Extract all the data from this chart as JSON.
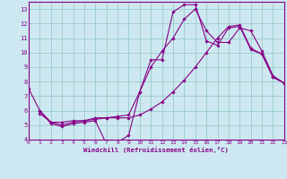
{
  "xlabel": "Windchill (Refroidissement éolien,°C)",
  "bg_color": "#cde8f0",
  "line_color": "#880088",
  "grid_color": "#99cccc",
  "xlim": [
    0,
    23
  ],
  "ylim": [
    4,
    13.5
  ],
  "xticks": [
    0,
    1,
    2,
    3,
    4,
    5,
    6,
    7,
    8,
    9,
    10,
    11,
    12,
    13,
    14,
    15,
    16,
    17,
    18,
    19,
    20,
    21,
    22,
    23
  ],
  "yticks": [
    4,
    5,
    6,
    7,
    8,
    9,
    10,
    11,
    12,
    13
  ],
  "lines": [
    {
      "x": [
        0,
        1,
        2,
        3,
        4,
        5,
        6,
        7,
        8,
        9,
        10,
        11,
        12,
        13,
        14,
        15,
        16,
        17,
        18,
        19,
        20,
        21,
        22,
        23
      ],
      "y": [
        7.5,
        6.0,
        5.1,
        4.9,
        5.1,
        5.2,
        5.3,
        3.7,
        3.8,
        4.3,
        7.3,
        9.5,
        9.5,
        12.8,
        13.3,
        13.3,
        10.8,
        10.5,
        11.7,
        11.8,
        10.2,
        9.9,
        8.3,
        7.9
      ]
    },
    {
      "x": [
        1,
        2,
        3,
        4,
        5,
        6,
        7,
        8,
        9,
        10,
        11,
        12,
        13,
        14,
        15,
        16,
        17,
        18,
        19,
        20,
        21,
        22,
        23
      ],
      "y": [
        5.8,
        5.2,
        5.2,
        5.3,
        5.3,
        5.5,
        5.5,
        5.6,
        5.7,
        7.3,
        9.0,
        10.1,
        11.0,
        12.3,
        13.0,
        11.5,
        10.7,
        10.7,
        11.7,
        11.5,
        10.1,
        8.4,
        7.9
      ]
    },
    {
      "x": [
        1,
        2,
        3,
        4,
        5,
        6,
        7,
        8,
        9,
        10,
        11,
        12,
        13,
        14,
        15,
        16,
        17,
        18,
        19,
        20,
        21,
        22,
        23
      ],
      "y": [
        6.0,
        5.2,
        5.0,
        5.2,
        5.3,
        5.4,
        5.5,
        5.5,
        5.5,
        5.7,
        6.1,
        6.6,
        7.3,
        8.1,
        9.0,
        10.0,
        11.0,
        11.8,
        11.9,
        10.3,
        9.9,
        8.3,
        7.9
      ]
    }
  ]
}
